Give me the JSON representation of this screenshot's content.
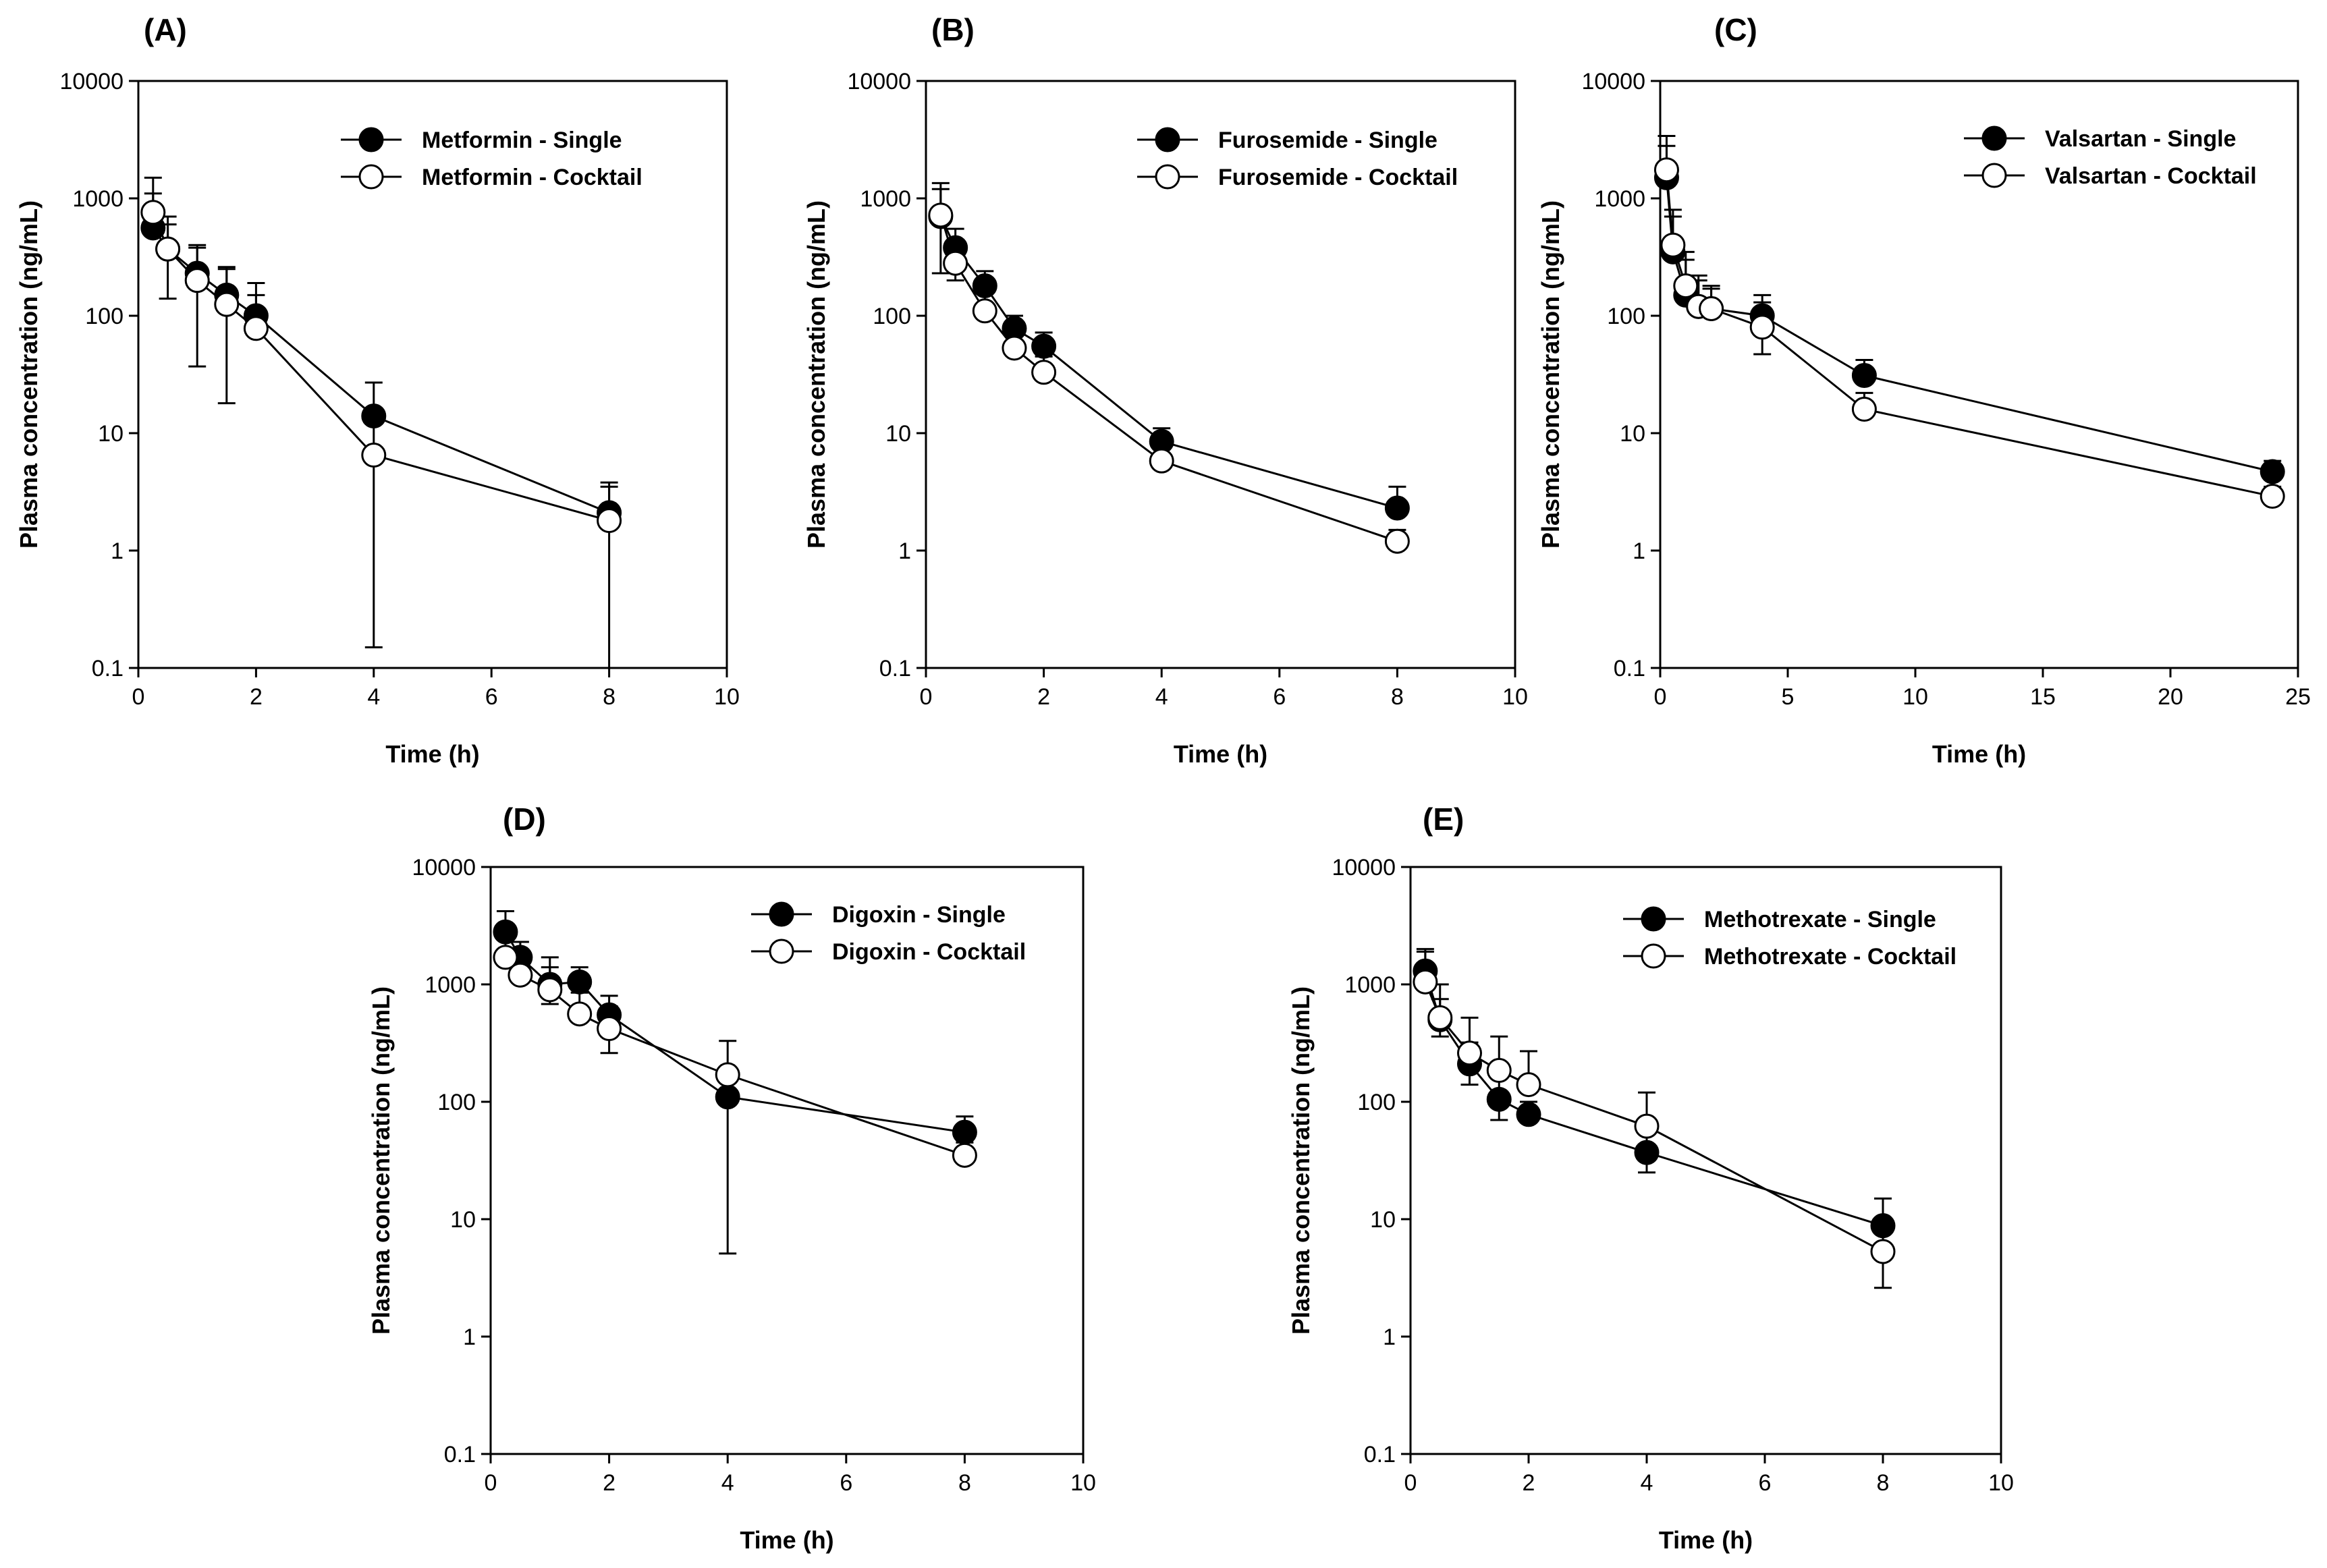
{
  "chart_data": [
    {
      "type": "line",
      "panel_label": "(A)",
      "xlabel": "Time (h)",
      "ylabel": "Plasma concentration (ng/mL)",
      "yscale": "log",
      "xlim": [
        0,
        10
      ],
      "ylim": [
        0.1,
        10000
      ],
      "x_ticks": [
        0,
        2,
        4,
        6,
        8,
        10
      ],
      "y_ticks": [
        0.1,
        1,
        10,
        100,
        1000,
        10000
      ],
      "y_tick_labels": [
        "0.1",
        "1",
        "10",
        "100",
        "1000",
        "10000"
      ],
      "legend": "top-right",
      "series": [
        {
          "name": "Metformin - Single",
          "marker": "filled",
          "x": [
            0.25,
            0.5,
            1,
            1.5,
            2,
            4,
            8
          ],
          "y": [
            560,
            370,
            230,
            150,
            100,
            14,
            2.1
          ],
          "err_upper": [
            1100,
            600,
            400,
            260,
            190,
            27,
            3.8
          ]
        },
        {
          "name": "Metformin - Cocktail",
          "marker": "open",
          "x": [
            0.25,
            0.5,
            1,
            1.5,
            2,
            4,
            8
          ],
          "y": [
            760,
            370,
            200,
            125,
            78,
            6.5,
            1.8
          ],
          "err_upper": [
            1500,
            700,
            380,
            250,
            150,
            12,
            3.5
          ],
          "err_lower": [
            null,
            140,
            37,
            18,
            null,
            0.15,
            0.1
          ]
        }
      ]
    },
    {
      "type": "line",
      "panel_label": "(B)",
      "xlabel": "Time (h)",
      "ylabel": "Plasma concentration (ng/mL)",
      "yscale": "log",
      "xlim": [
        0,
        10
      ],
      "ylim": [
        0.1,
        10000
      ],
      "x_ticks": [
        0,
        2,
        4,
        6,
        8,
        10
      ],
      "y_ticks": [
        0.1,
        1,
        10,
        100,
        1000,
        10000
      ],
      "y_tick_labels": [
        "0.1",
        "1",
        "10",
        "100",
        "1000",
        "10000"
      ],
      "legend": "top-right",
      "series": [
        {
          "name": "Furosemide - Single",
          "marker": "filled",
          "x": [
            0.25,
            0.5,
            1,
            1.5,
            2,
            4,
            8
          ],
          "y": [
            700,
            380,
            180,
            78,
            55,
            8.5,
            2.3
          ],
          "err_upper": [
            1200,
            550,
            240,
            100,
            72,
            11,
            3.5
          ]
        },
        {
          "name": "Furosemide - Cocktail",
          "marker": "open",
          "x": [
            0.25,
            0.5,
            1,
            1.5,
            2,
            4,
            8
          ],
          "y": [
            720,
            280,
            110,
            53,
            33,
            5.8,
            1.2
          ],
          "err_upper": [
            1350,
            420,
            160,
            70,
            45,
            7.5,
            1.5
          ],
          "err_lower": [
            230,
            200,
            null,
            null,
            null,
            null,
            null
          ]
        }
      ]
    },
    {
      "type": "line",
      "panel_label": "(C)",
      "xlabel": "Time (h)",
      "ylabel": "Plasma concentration (ng/mL)",
      "yscale": "log",
      "xlim": [
        0,
        25
      ],
      "ylim": [
        0.1,
        10000
      ],
      "x_ticks": [
        0,
        5,
        10,
        15,
        20,
        25
      ],
      "y_ticks": [
        0.1,
        1,
        10,
        100,
        1000,
        10000
      ],
      "y_tick_labels": [
        "0.1",
        "1",
        "10",
        "100",
        "1000",
        "10000"
      ],
      "legend": "top-right",
      "series": [
        {
          "name": "Valsartan - Single",
          "marker": "filled",
          "x": [
            0.25,
            0.5,
            1,
            1.5,
            2,
            4,
            8,
            24
          ],
          "y": [
            1500,
            350,
            150,
            120,
            115,
            100,
            31,
            4.7
          ],
          "err_upper": [
            3400,
            800,
            350,
            220,
            180,
            150,
            42,
            5.8
          ]
        },
        {
          "name": "Valsartan - Cocktail",
          "marker": "open",
          "x": [
            0.25,
            0.5,
            1,
            1.5,
            2,
            4,
            8,
            24
          ],
          "y": [
            1750,
            400,
            180,
            120,
            115,
            80,
            16,
            2.9
          ],
          "err_upper": [
            2800,
            700,
            300,
            200,
            170,
            130,
            22,
            3.5
          ],
          "err_lower": [
            null,
            null,
            null,
            null,
            null,
            47,
            null,
            null
          ]
        }
      ]
    },
    {
      "type": "line",
      "panel_label": "(D)",
      "xlabel": "Time (h)",
      "ylabel": "Plasma concentration (ng/mL)",
      "yscale": "log",
      "xlim": [
        0,
        10
      ],
      "ylim": [
        0.1,
        10000
      ],
      "x_ticks": [
        0,
        2,
        4,
        6,
        8,
        10
      ],
      "y_ticks": [
        0.1,
        1,
        10,
        100,
        1000,
        10000
      ],
      "y_tick_labels": [
        "0.1",
        "1",
        "10",
        "100",
        "1000",
        "10000"
      ],
      "legend": "top-right",
      "series": [
        {
          "name": "Digoxin - Single",
          "marker": "filled",
          "x": [
            0.25,
            0.5,
            1,
            1.5,
            2,
            4,
            8
          ],
          "y": [
            2800,
            1700,
            1000,
            1050,
            550,
            110,
            55
          ],
          "err_upper": [
            4200,
            2300,
            1400,
            1400,
            800,
            null,
            75
          ]
        },
        {
          "name": "Digoxin - Cocktail",
          "marker": "open",
          "x": [
            0.25,
            0.5,
            1,
            1.5,
            2,
            4,
            8
          ],
          "y": [
            1700,
            1200,
            900,
            560,
            420,
            170,
            35
          ],
          "err_upper": [
            2400,
            1900,
            1700,
            850,
            650,
            330,
            45
          ],
          "err_lower": [
            null,
            null,
            680,
            null,
            260,
            5.1,
            null
          ]
        }
      ]
    },
    {
      "type": "line",
      "panel_label": "(E)",
      "xlabel": "Time (h)",
      "ylabel": "Plasma concentration (ng/mL)",
      "yscale": "log",
      "xlim": [
        0,
        10
      ],
      "ylim": [
        0.1,
        10000
      ],
      "x_ticks": [
        0,
        2,
        4,
        6,
        8,
        10
      ],
      "y_ticks": [
        0.1,
        1,
        10,
        100,
        1000,
        10000
      ],
      "y_tick_labels": [
        "0.1",
        "1",
        "10",
        "100",
        "1000",
        "10000"
      ],
      "legend": "top-right",
      "series": [
        {
          "name": "Methotrexate - Single",
          "marker": "filled",
          "x": [
            0.25,
            0.5,
            1,
            1.5,
            2,
            4,
            8
          ],
          "y": [
            1300,
            500,
            210,
            105,
            78,
            37,
            8.8
          ],
          "err_upper": [
            2000,
            750,
            320,
            160,
            100,
            55,
            15
          ],
          "err_lower": [
            null,
            360,
            140,
            70,
            null,
            25,
            null
          ]
        },
        {
          "name": "Methotrexate - Cocktail",
          "marker": "open",
          "x": [
            0.25,
            0.5,
            1,
            1.5,
            2,
            4,
            8
          ],
          "y": [
            1050,
            520,
            260,
            185,
            140,
            62,
            5.3
          ],
          "err_upper": [
            1900,
            1000,
            520,
            360,
            270,
            120,
            9
          ],
          "err_lower": [
            null,
            null,
            null,
            null,
            null,
            null,
            2.6
          ]
        }
      ]
    }
  ]
}
